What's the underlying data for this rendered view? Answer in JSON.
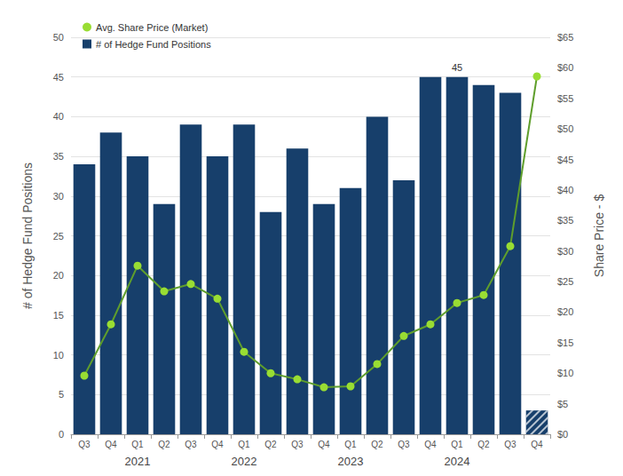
{
  "chart_data": {
    "type": "bar",
    "categories": [
      "Q3",
      "Q4",
      "Q1",
      "Q2",
      "Q3",
      "Q4",
      "Q1",
      "Q2",
      "Q3",
      "Q4",
      "Q1",
      "Q2",
      "Q3",
      "Q4",
      "Q1",
      "Q2",
      "Q3",
      "Q4"
    ],
    "years": [
      null,
      null,
      "2021",
      null,
      null,
      null,
      "2022",
      null,
      null,
      null,
      "2023",
      null,
      null,
      null,
      "2024",
      null,
      null,
      null
    ],
    "series": [
      {
        "name": "Avg. Share Price (Market)",
        "type": "line",
        "axis": "y2",
        "color": "#99dd33",
        "marker": "circle",
        "values": [
          9.6,
          18.0,
          27.6,
          23.4,
          24.6,
          22.2,
          13.5,
          10.0,
          9.0,
          7.7,
          7.85,
          11.5,
          16.1,
          18.0,
          21.5,
          22.8,
          30.8,
          58.6
        ]
      },
      {
        "name": "# of Hedge Fund Positions",
        "type": "bar",
        "color": "#173f6b",
        "values": [
          34,
          38,
          35,
          29,
          39,
          35,
          39,
          28,
          36,
          29,
          31,
          40,
          32,
          45,
          45,
          44,
          43,
          3
        ],
        "value_labels": [
          null,
          null,
          null,
          null,
          null,
          null,
          null,
          null,
          null,
          null,
          null,
          null,
          null,
          null,
          "45",
          null,
          null,
          null
        ]
      }
    ],
    "ylabel": "# of Hedge Fund Positions",
    "y2label": "Share Price - $",
    "ylim": [
      0,
      50
    ],
    "yticks": [
      0,
      5,
      10,
      15,
      20,
      25,
      30,
      35,
      40,
      45,
      50
    ],
    "y2lim": [
      0,
      65
    ],
    "y2ticks": [
      {
        "value": 0,
        "label": "$0"
      },
      {
        "value": 5,
        "label": "$5"
      },
      {
        "value": 10,
        "label": "$10"
      },
      {
        "value": 15,
        "label": "$15"
      },
      {
        "value": 20,
        "label": "$20"
      },
      {
        "value": 25,
        "label": "$25"
      },
      {
        "value": 30,
        "label": "$30"
      },
      {
        "value": 35,
        "label": "$35"
      },
      {
        "value": 40,
        "label": "$40"
      },
      {
        "value": 45,
        "label": "$45"
      },
      {
        "value": 50,
        "label": "$50"
      },
      {
        "value": 55,
        "label": "$55"
      },
      {
        "value": 60,
        "label": "$60"
      },
      {
        "value": 65,
        "label": "$65"
      }
    ],
    "grid": true,
    "legend": "upper left"
  }
}
